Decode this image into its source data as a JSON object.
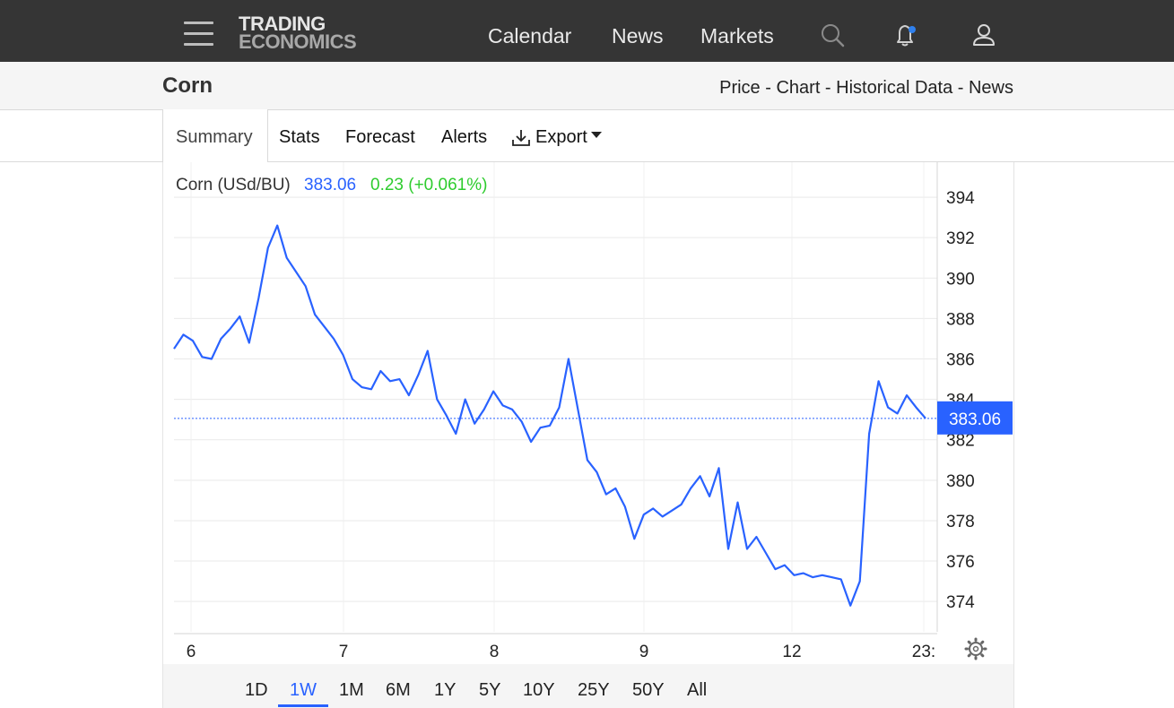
{
  "header": {
    "logo_line1": "TRADING",
    "logo_line2": "ECONOMICS",
    "nav": [
      "Calendar",
      "News",
      "Markets"
    ],
    "icons": [
      "menu-icon",
      "search-icon",
      "bell-icon",
      "user-icon"
    ]
  },
  "subheader": {
    "title": "Corn",
    "crumbs": [
      "Price",
      "Chart",
      "Historical Data",
      "News"
    ],
    "separator": " - "
  },
  "tabs": {
    "active": "Summary",
    "items": [
      "Stats",
      "Forecast",
      "Alerts",
      "Export"
    ]
  },
  "chart_header": {
    "instrument": "Corn (USd/BU)",
    "last": "383.06",
    "change": "0.23 (+0.061%)"
  },
  "colors": {
    "line": "#2962ff",
    "positive": "#2ecc2e",
    "accent": "#2962ff"
  },
  "chart_data": {
    "type": "line",
    "series": [
      {
        "values": [
          386.5,
          387.2,
          386.9,
          386.1,
          386.0,
          387.0,
          387.5,
          388.1,
          386.8,
          389.0,
          391.5,
          392.6,
          391.0,
          390.3,
          389.6,
          388.2,
          387.6,
          387.0,
          386.2,
          385.0,
          384.6,
          384.5,
          385.4,
          384.9,
          385.0,
          384.2,
          385.2,
          386.4,
          384.0,
          383.2,
          382.3,
          384.0,
          382.8,
          383.5,
          384.4,
          383.7,
          383.5,
          382.9,
          381.9,
          382.6,
          382.7,
          383.6,
          386.0,
          383.5,
          381.0,
          380.4,
          379.3,
          379.6,
          378.7,
          377.1,
          378.3,
          378.6,
          378.2,
          378.5,
          378.8,
          379.6,
          380.2,
          379.2,
          380.6,
          376.6,
          378.9,
          376.6,
          377.2,
          376.4,
          375.6,
          375.8,
          375.3,
          375.4,
          375.2,
          375.3,
          375.2,
          375.1,
          373.8,
          375.0,
          382.3,
          384.9,
          383.6,
          383.3,
          384.2,
          383.6,
          383.06
        ]
      }
    ],
    "x_tick_labels": [
      "6",
      "7",
      "8",
      "9",
      "12",
      "23:"
    ],
    "y_ticks": [
      374,
      376,
      378,
      380,
      382,
      384,
      386,
      388,
      390,
      392,
      394
    ],
    "ylim": [
      372.5,
      395.2
    ],
    "last_value": 383.06,
    "last_value_label": "383.06",
    "grid": true
  },
  "range_buttons": [
    "1D",
    "1W",
    "1M",
    "6M",
    "1Y",
    "5Y",
    "10Y",
    "25Y",
    "50Y",
    "All"
  ],
  "range_active": "1W"
}
